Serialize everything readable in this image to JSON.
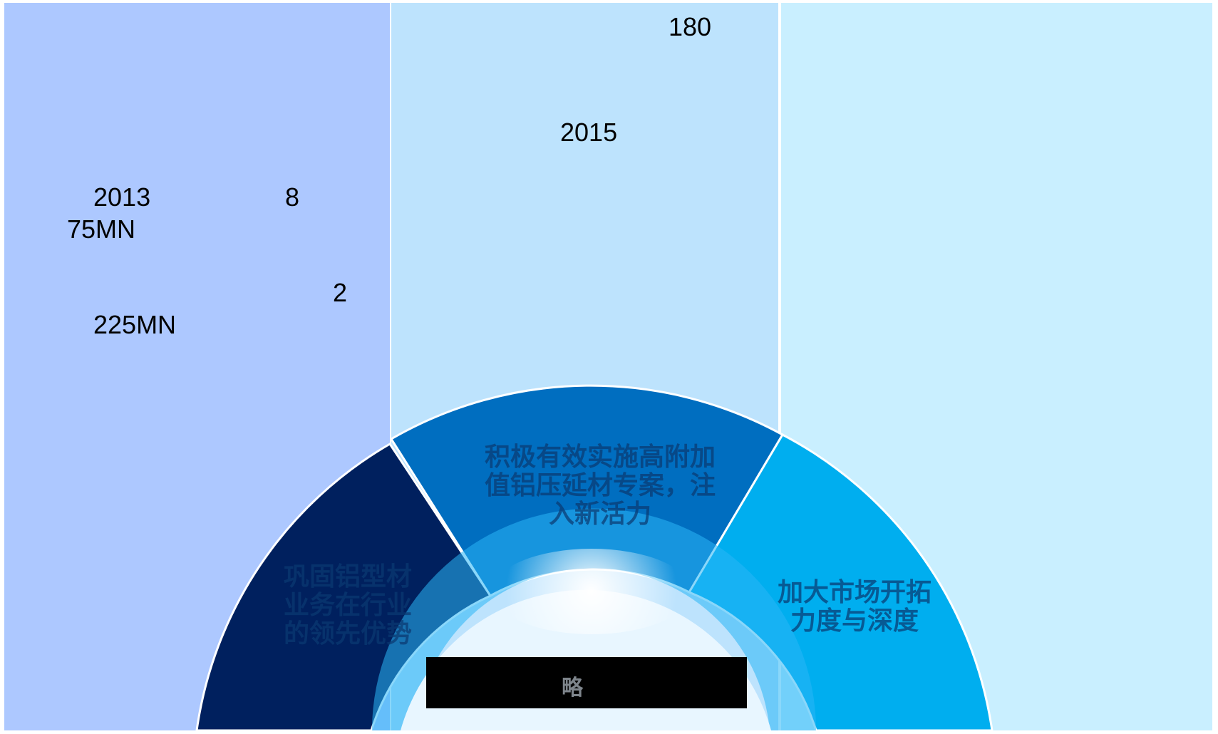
{
  "left_panel": {
    "year_label": "2013",
    "line1_number": "8",
    "line1_value": "75MN",
    "line2_number": "2",
    "line2_value": "225MN"
  },
  "middle_panel": {
    "top_number": "180",
    "year_label": "2015"
  },
  "segments": {
    "left": "巩固铝型材\n业务在行业\n的领先优势",
    "middle": "积极有效实施高附加\n值铝压延材专案，注\n入新活力",
    "right": "加大市场开拓\n力度与深度"
  },
  "center": {
    "title": "略"
  },
  "colors": {
    "left_column": "#adc8ff",
    "middle_column": "#bde3fd",
    "right_column": "#c9efff",
    "segment_left": "#00205e",
    "segment_middle": "#006ec0",
    "segment_right": "#00aeef",
    "ring_inner": "#29b6f6"
  }
}
